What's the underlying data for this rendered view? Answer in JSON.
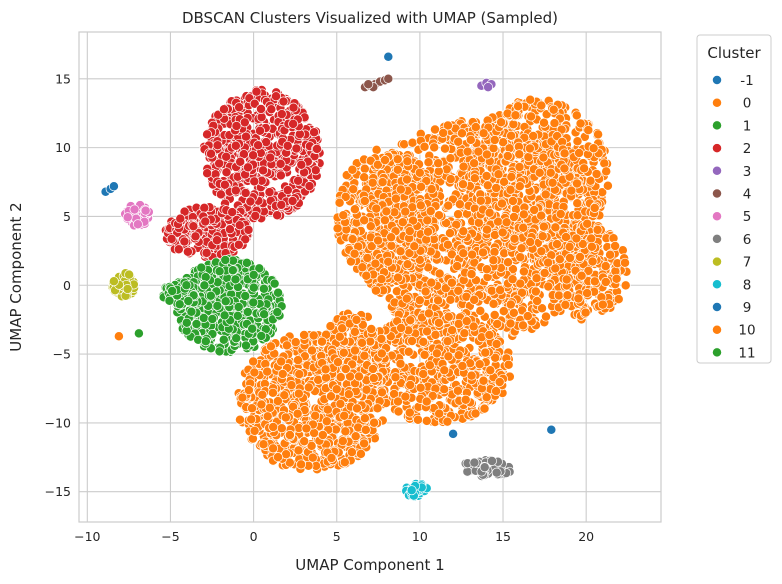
{
  "chart_data": {
    "type": "scatter",
    "title": "DBSCAN Clusters Visualized with UMAP (Sampled)",
    "xlabel": "UMAP Component 1",
    "ylabel": "UMAP Component 2",
    "xlim": [
      -10.5,
      24.5
    ],
    "ylim": [
      -17.2,
      18.4
    ],
    "xticks": [
      -10,
      -5,
      0,
      5,
      10,
      15,
      20
    ],
    "yticks": [
      -15,
      -10,
      -5,
      0,
      5,
      10,
      15
    ],
    "xtick_labels": [
      "−10",
      "−5",
      "0",
      "5",
      "10",
      "15",
      "20"
    ],
    "ytick_labels": [
      "−15",
      "−10",
      "−5",
      "0",
      "5",
      "10",
      "15"
    ],
    "grid": true,
    "legend": {
      "title": "Cluster",
      "placement": "outside-right"
    },
    "series": [
      {
        "name": "-1",
        "color": "#1f77b4",
        "points": [
          [
            8.1,
            16.6
          ],
          [
            -8.9,
            6.8
          ],
          [
            -8.6,
            7.0
          ],
          [
            -8.4,
            7.2
          ],
          [
            12.0,
            -10.8
          ],
          [
            17.9,
            -10.5
          ]
        ]
      },
      {
        "name": "0",
        "color": "#ff7f0e",
        "points": [
          [
            -8.1,
            -3.7
          ]
        ],
        "regions": [
          {
            "center": [
              13.5,
              4.0
            ],
            "rx": 7.5,
            "ry": 8.0,
            "count": 1500
          },
          {
            "center": [
              17.0,
              8.0
            ],
            "rx": 4.5,
            "ry": 5.5,
            "count": 500
          },
          {
            "center": [
              20.0,
              1.0
            ],
            "rx": 2.5,
            "ry": 3.5,
            "count": 220
          },
          {
            "center": [
              8.0,
              5.0
            ],
            "rx": 3.0,
            "ry": 5.0,
            "count": 350
          },
          {
            "center": [
              11.0,
              -6.0
            ],
            "rx": 4.5,
            "ry": 4.0,
            "count": 500
          },
          {
            "center": [
              3.5,
              -8.5
            ],
            "rx": 4.5,
            "ry": 5.0,
            "count": 800
          },
          {
            "center": [
              6.0,
              -5.0
            ],
            "rx": 2.0,
            "ry": 3.0,
            "count": 200
          }
        ]
      },
      {
        "name": "1",
        "color": "#2ca02c",
        "points": [
          [
            -6.9,
            -3.5
          ]
        ],
        "regions": [
          {
            "center": [
              -1.5,
              -1.5
            ],
            "rx": 3.2,
            "ry": 3.4,
            "count": 500
          },
          {
            "center": [
              -4.0,
              -0.6
            ],
            "rx": 1.5,
            "ry": 0.9,
            "count": 80
          }
        ]
      },
      {
        "name": "2",
        "color": "#d62728",
        "regions": [
          {
            "center": [
              0.5,
              9.5
            ],
            "rx": 3.5,
            "ry": 4.7,
            "count": 600
          },
          {
            "center": [
              -2.8,
              3.8
            ],
            "rx": 2.6,
            "ry": 1.9,
            "count": 280
          }
        ]
      },
      {
        "name": "3",
        "color": "#9467bd",
        "points": [
          [
            13.7,
            14.5
          ],
          [
            14.0,
            14.7
          ],
          [
            14.3,
            14.6
          ],
          [
            14.1,
            14.4
          ]
        ]
      },
      {
        "name": "4",
        "color": "#8c564b",
        "points": [
          [
            6.7,
            14.4
          ],
          [
            7.0,
            14.5
          ],
          [
            7.3,
            14.6
          ],
          [
            7.6,
            14.8
          ],
          [
            7.9,
            14.9
          ],
          [
            8.1,
            15.0
          ],
          [
            7.2,
            14.4
          ],
          [
            6.9,
            14.6
          ]
        ]
      },
      {
        "name": "5",
        "color": "#e377c2",
        "regions": [
          {
            "center": [
              -7.0,
              5.1
            ],
            "rx": 0.8,
            "ry": 0.8,
            "count": 60
          }
        ]
      },
      {
        "name": "6",
        "color": "#7f7f7f",
        "regions": [
          {
            "center": [
              14.0,
              -13.3
            ],
            "rx": 1.6,
            "ry": 0.6,
            "count": 60
          }
        ]
      },
      {
        "name": "7",
        "color": "#bcbd22",
        "regions": [
          {
            "center": [
              -7.8,
              0.0
            ],
            "rx": 0.7,
            "ry": 0.9,
            "count": 60
          }
        ]
      },
      {
        "name": "8",
        "color": "#17becf",
        "regions": [
          {
            "center": [
              9.8,
              -14.9
            ],
            "rx": 0.7,
            "ry": 0.5,
            "count": 40
          }
        ]
      },
      {
        "name": "9",
        "color": "#1f77b4",
        "points": []
      },
      {
        "name": "10",
        "color": "#ff7f0e",
        "points": []
      },
      {
        "name": "11",
        "color": "#2ca02c",
        "points": []
      }
    ]
  }
}
